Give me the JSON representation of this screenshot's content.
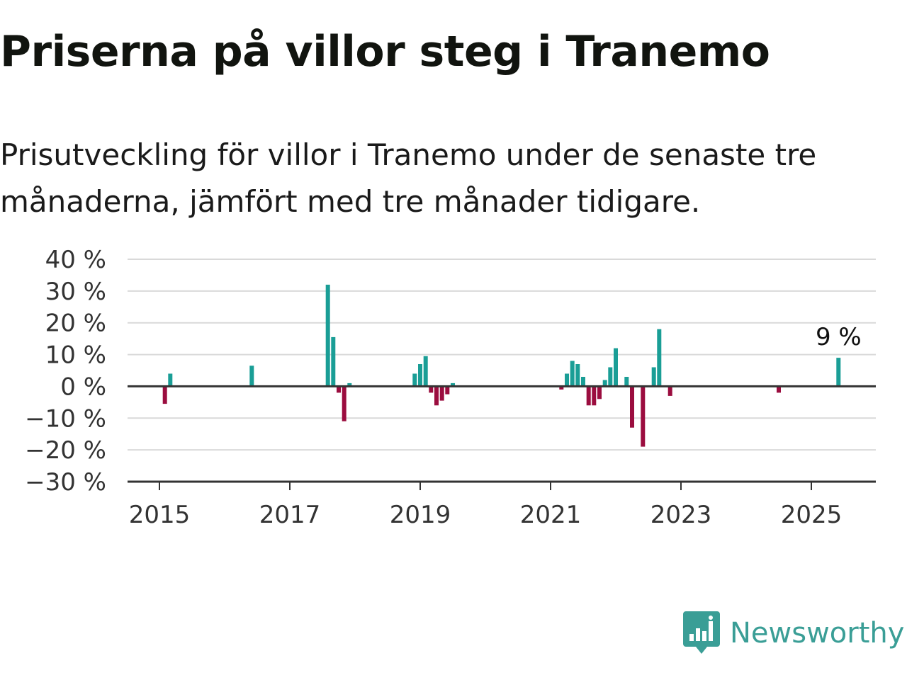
{
  "title": "Priserna på villor steg i Tranemo",
  "subtitle": "Prisutveckling för villor i Tranemo under de senaste tre månaderna, jämfört med tre månader tidigare.",
  "brand": {
    "name": "Newsworthy",
    "logo_icon": "newsworthy-logo-icon",
    "color": "#3a9e96"
  },
  "colors": {
    "positive": "#1a9e96",
    "negative": "#9b0d3f",
    "grid": "#d9d9d9",
    "axis": "#333333"
  },
  "chart_data": {
    "type": "bar",
    "x_type": "date",
    "y_unit": "%",
    "ylim": [
      -30,
      40
    ],
    "y_ticks": [
      40,
      30,
      20,
      10,
      0,
      -10,
      -20,
      -30
    ],
    "y_tick_labels": [
      "40 %",
      "30 %",
      "20 %",
      "10 %",
      "0 %",
      "−10 %",
      "−20 %",
      "−30 %"
    ],
    "x_ticks": [
      "2015",
      "2017",
      "2019",
      "2021",
      "2023",
      "2025"
    ],
    "grid": true,
    "annotation": {
      "x": "2025-06",
      "text": "9 %"
    },
    "points": [
      {
        "x": "2015-02",
        "y": -5.5
      },
      {
        "x": "2015-03",
        "y": 4
      },
      {
        "x": "2016-06",
        "y": 6.5
      },
      {
        "x": "2017-08",
        "y": 32
      },
      {
        "x": "2017-09",
        "y": 15.5
      },
      {
        "x": "2017-10",
        "y": -2
      },
      {
        "x": "2017-11",
        "y": -11
      },
      {
        "x": "2017-12",
        "y": 1
      },
      {
        "x": "2018-12",
        "y": 4
      },
      {
        "x": "2019-01",
        "y": 7
      },
      {
        "x": "2019-02",
        "y": 9.5
      },
      {
        "x": "2019-03",
        "y": -2
      },
      {
        "x": "2019-04",
        "y": -6
      },
      {
        "x": "2019-05",
        "y": -4.5
      },
      {
        "x": "2019-06",
        "y": -2.5
      },
      {
        "x": "2019-07",
        "y": 1
      },
      {
        "x": "2021-03",
        "y": -1
      },
      {
        "x": "2021-04",
        "y": 4
      },
      {
        "x": "2021-05",
        "y": 8
      },
      {
        "x": "2021-06",
        "y": 7
      },
      {
        "x": "2021-07",
        "y": 3
      },
      {
        "x": "2021-08",
        "y": -6
      },
      {
        "x": "2021-09",
        "y": -6
      },
      {
        "x": "2021-10",
        "y": -4
      },
      {
        "x": "2021-11",
        "y": 2
      },
      {
        "x": "2021-12",
        "y": 6
      },
      {
        "x": "2022-01",
        "y": 12
      },
      {
        "x": "2022-03",
        "y": 3
      },
      {
        "x": "2022-04",
        "y": -13
      },
      {
        "x": "2022-06",
        "y": -19
      },
      {
        "x": "2022-08",
        "y": 6
      },
      {
        "x": "2022-09",
        "y": 18
      },
      {
        "x": "2022-11",
        "y": -3
      },
      {
        "x": "2024-07",
        "y": -2
      },
      {
        "x": "2025-06",
        "y": 9
      }
    ]
  }
}
